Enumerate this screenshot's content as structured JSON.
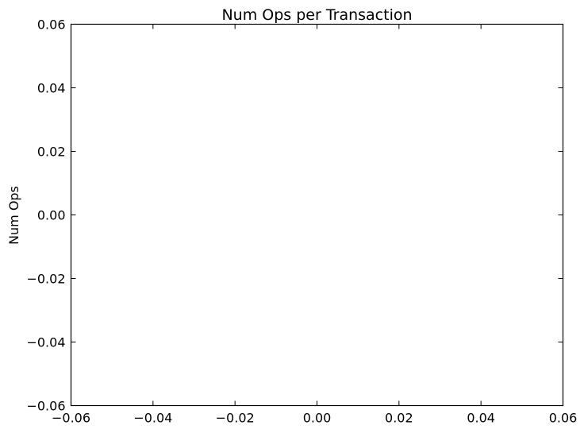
{
  "chart_data": {
    "type": "line",
    "title": "Num Ops per Transaction",
    "xlabel": "",
    "ylabel": "Num Ops",
    "series": [],
    "xlim": [
      -0.06,
      0.06
    ],
    "ylim": [
      -0.06,
      0.06
    ],
    "xticks": [
      "−0.06",
      "−0.04",
      "−0.02",
      "0.00",
      "0.02",
      "0.04",
      "0.06"
    ],
    "yticks": [
      "−0.06",
      "−0.04",
      "−0.02",
      "0.00",
      "0.02",
      "0.04",
      "0.06"
    ],
    "xtick_values": [
      -0.06,
      -0.04,
      -0.02,
      0.0,
      0.02,
      0.04,
      0.06
    ],
    "ytick_values": [
      -0.06,
      -0.04,
      -0.02,
      0.0,
      0.02,
      0.04,
      0.06
    ],
    "grid": false,
    "legend": "none"
  }
}
